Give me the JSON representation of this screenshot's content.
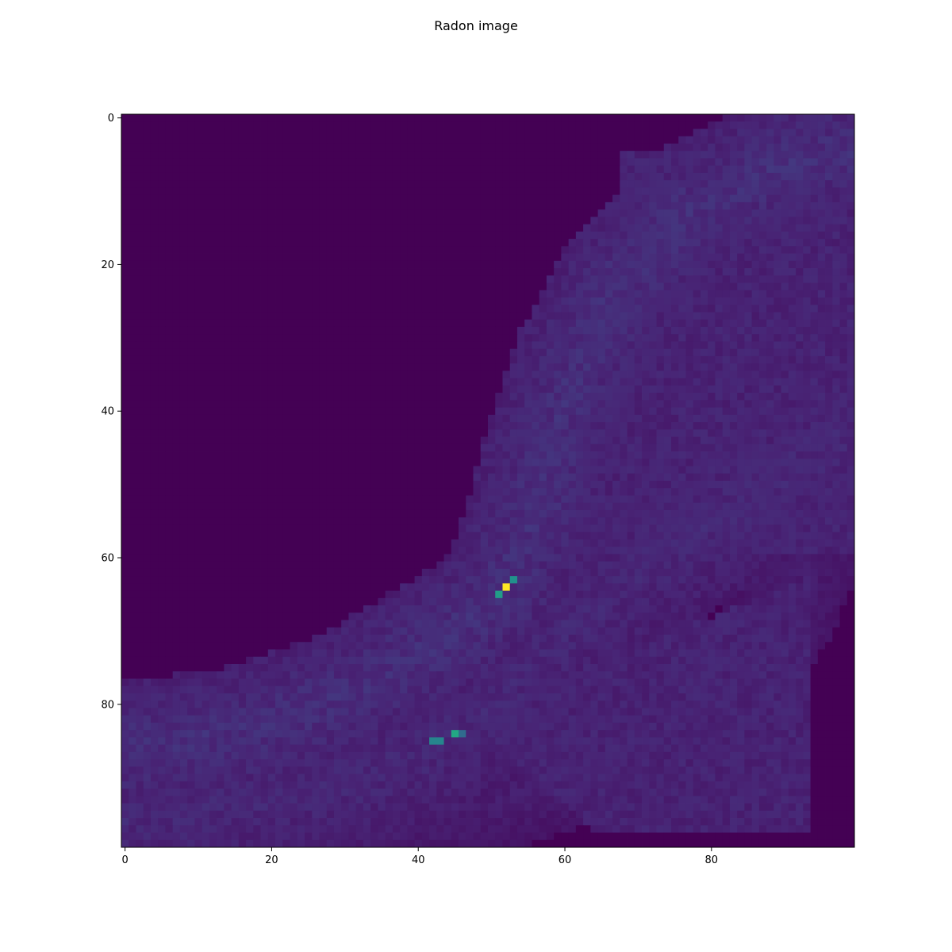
{
  "chart_data": {
    "type": "heatmap",
    "title": "Radon image",
    "xlabel": "",
    "ylabel": "",
    "grid": false,
    "legend": "none",
    "colormap": "viridis",
    "shape": [
      100,
      100
    ],
    "xlim": [
      -0.5,
      99.5
    ],
    "ylim": [
      99.5,
      -0.5
    ],
    "y_origin": "top",
    "xticks": [
      0,
      20,
      40,
      60,
      80
    ],
    "yticks": [
      0,
      20,
      40,
      60,
      80
    ],
    "xtick_labels": [
      "0",
      "20",
      "40",
      "60",
      "80"
    ],
    "ytick_labels": [
      "0",
      "20",
      "40",
      "60",
      "80"
    ],
    "value_range": [
      0,
      1
    ],
    "background_value": 0,
    "peaks": [
      {
        "x": 52,
        "y": 64,
        "value": 1.0
      },
      {
        "x": 53,
        "y": 63,
        "value": 0.5
      },
      {
        "x": 51,
        "y": 65,
        "value": 0.55
      },
      {
        "x": 45,
        "y": 84,
        "value": 0.6
      },
      {
        "x": 42,
        "y": 85,
        "value": 0.45
      },
      {
        "x": 43,
        "y": 85,
        "value": 0.45
      },
      {
        "x": 46,
        "y": 84,
        "value": 0.35
      }
    ],
    "bands": [
      {
        "description": "upper band: from lower-left to mid, rising to upper-right",
        "path": [
          [
            0,
            86
          ],
          [
            15,
            84
          ],
          [
            30,
            79
          ],
          [
            40,
            73
          ],
          [
            48,
            68
          ],
          [
            52,
            64
          ],
          [
            55,
            56
          ],
          [
            58,
            45
          ],
          [
            62,
            33
          ],
          [
            68,
            22
          ],
          [
            78,
            12
          ],
          [
            90,
            6
          ],
          [
            99,
            5
          ]
        ],
        "width": 9,
        "value": 0.13
      },
      {
        "description": "lower band: from bottom-left, through crossing near x=45 y=85, to right side",
        "path": [
          [
            0,
            96
          ],
          [
            15,
            94
          ],
          [
            30,
            91
          ],
          [
            40,
            87
          ],
          [
            45,
            84
          ],
          [
            52,
            78
          ],
          [
            60,
            70
          ],
          [
            70,
            62
          ],
          [
            82,
            54
          ],
          [
            92,
            47
          ],
          [
            99,
            43
          ]
        ],
        "width": 10,
        "value": 0.11
      },
      {
        "description": "outer faint band along bottom-right",
        "path": [
          [
            15,
            98
          ],
          [
            35,
            96
          ],
          [
            55,
            92
          ],
          [
            70,
            86
          ],
          [
            82,
            78
          ],
          [
            90,
            68
          ],
          [
            94,
            58
          ],
          [
            95,
            50
          ]
        ],
        "width": 7,
        "value": 0.08
      }
    ]
  }
}
